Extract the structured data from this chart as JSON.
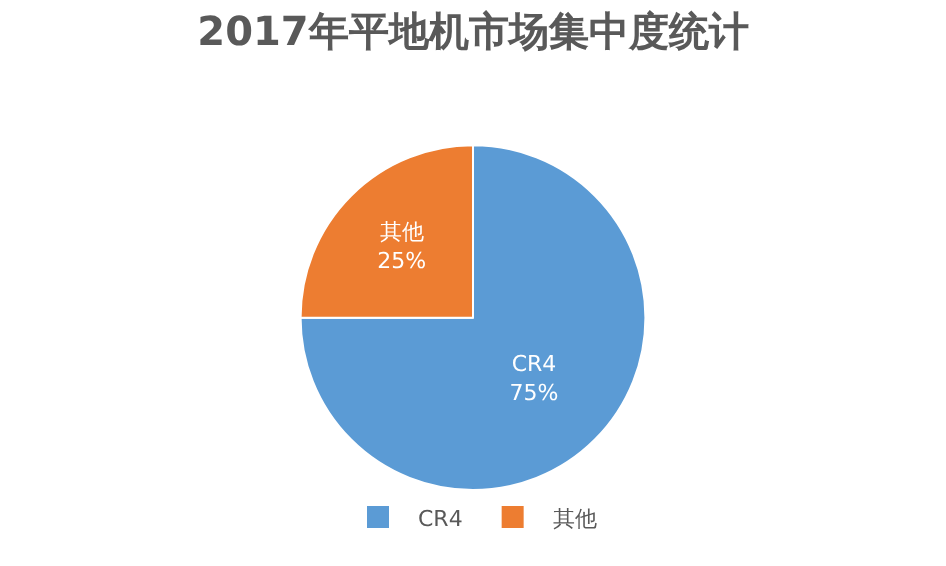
{
  "chart_data": {
    "type": "pie",
    "title": "2017年平地机市场集中度统计",
    "categories": [
      "CR4",
      "其他"
    ],
    "values": [
      75,
      25
    ],
    "colors": [
      "#5b9bd5",
      "#ed7d31"
    ],
    "value_labels": [
      "75%",
      "25%"
    ],
    "legend": "bottom"
  }
}
